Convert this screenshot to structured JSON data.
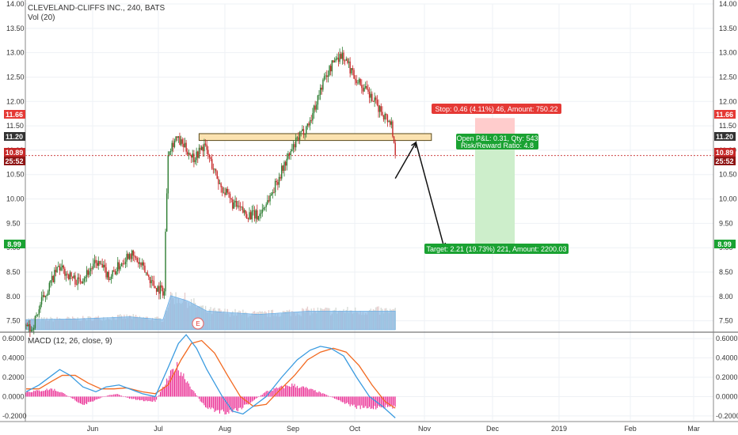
{
  "header": {
    "symbol_title": "CLEVELAND-CLIFFS INC., 240, BATS",
    "volume_label": "Vol (20)",
    "earnings_marker": "E"
  },
  "macd_pane": {
    "title": "MACD (12, 26, close, 9)"
  },
  "colors": {
    "up": "#2e7d32",
    "down": "#c62828",
    "macd_line": "#3a9be0",
    "signal_line": "#f26a21",
    "hist_pos": "#e91e8c",
    "hist_neg": "#e91e8c",
    "volume": "#7cb6e6",
    "zone": "#fbe2b0",
    "stop_fill": "#ffcccc",
    "target_fill": "#cdeecb",
    "stop_tag": "#e53935",
    "target_tag": "#1aa232"
  },
  "price_tags": {
    "stop": "11.66",
    "entry": "11.20",
    "last": "10.89",
    "countdown": "25:52",
    "target": "8.99"
  },
  "position": {
    "stop_label": "Stop: 0.46 (4.11%) 46, Amount: 750.22",
    "open_pnl_label": "Open P&L: 0.31, Qty: 543",
    "risk_reward_label": "Risk/Reward Ratio: 4.8",
    "target_label": "Target: 2.21 (19.73%) 221, Amount: 2200.03"
  },
  "chart_data": {
    "type": "candlestick",
    "title": "CLEVELAND-CLIFFS INC., 240, BATS",
    "y_axis_labels": [
      "14.00",
      "13.50",
      "13.00",
      "12.50",
      "12.00",
      "11.50",
      "11.00",
      "10.50",
      "10.00",
      "9.50",
      "9.00",
      "8.50",
      "8.00",
      "7.50"
    ],
    "ylim": [
      7.3,
      14.0
    ],
    "x_axis_labels": [
      "Jun",
      "Jul",
      "Aug",
      "Sep",
      "Oct",
      "Nov",
      "Dec",
      "2019",
      "Feb",
      "Mar"
    ],
    "price_path": [
      [
        0,
        7.4
      ],
      [
        4,
        7.3
      ],
      [
        12,
        7.9
      ],
      [
        25,
        8.6
      ],
      [
        40,
        8.3
      ],
      [
        55,
        8.7
      ],
      [
        65,
        8.4
      ],
      [
        80,
        8.9
      ],
      [
        90,
        8.6
      ],
      [
        100,
        8.2
      ],
      [
        107,
        8.1
      ],
      [
        108,
        9.3
      ],
      [
        110,
        11.0
      ],
      [
        116,
        11.25
      ],
      [
        130,
        10.85
      ],
      [
        138,
        11.1
      ],
      [
        150,
        10.3
      ],
      [
        160,
        9.9
      ],
      [
        170,
        9.7
      ],
      [
        180,
        9.65
      ],
      [
        190,
        10.1
      ],
      [
        200,
        10.7
      ],
      [
        210,
        11.2
      ],
      [
        220,
        11.6
      ],
      [
        230,
        12.4
      ],
      [
        240,
        12.9
      ],
      [
        245,
        12.95
      ],
      [
        255,
        12.5
      ],
      [
        265,
        12.15
      ],
      [
        275,
        11.8
      ],
      [
        283,
        11.55
      ],
      [
        286,
        10.9
      ]
    ],
    "volume_level_path": [
      [
        0,
        0.3
      ],
      [
        40,
        0.32
      ],
      [
        80,
        0.38
      ],
      [
        106,
        0.3
      ],
      [
        112,
        1.0
      ],
      [
        125,
        0.85
      ],
      [
        140,
        0.55
      ],
      [
        180,
        0.45
      ],
      [
        220,
        0.55
      ],
      [
        286,
        0.55
      ]
    ],
    "resistance_zone": [
      11.2,
      11.34
    ],
    "projection_path": [
      {
        "offset": 0,
        "value": 10.42
      },
      {
        "offset": 16,
        "value": 11.16
      },
      {
        "offset": 38,
        "value": 8.99
      }
    ],
    "risk_reward": {
      "entry": 11.2,
      "stop": 11.66,
      "target": 8.99
    },
    "macd": {
      "y_axis_labels": [
        "0.6000",
        "0.4000",
        "0.2000",
        "0.0000",
        "-0.2000"
      ],
      "ylim": [
        -0.25,
        0.65
      ],
      "macd_line": [
        [
          0,
          0.05
        ],
        [
          10,
          0.12
        ],
        [
          20,
          0.22
        ],
        [
          26,
          0.28
        ],
        [
          34,
          0.22
        ],
        [
          44,
          0.1
        ],
        [
          54,
          0.05
        ],
        [
          62,
          0.1
        ],
        [
          72,
          0.12
        ],
        [
          80,
          0.08
        ],
        [
          90,
          0.03
        ],
        [
          100,
          0.0
        ],
        [
          110,
          0.3
        ],
        [
          118,
          0.55
        ],
        [
          124,
          0.64
        ],
        [
          132,
          0.5
        ],
        [
          140,
          0.28
        ],
        [
          152,
          0.0
        ],
        [
          160,
          -0.15
        ],
        [
          168,
          -0.18
        ],
        [
          176,
          -0.1
        ],
        [
          186,
          0.0
        ],
        [
          198,
          0.2
        ],
        [
          210,
          0.38
        ],
        [
          220,
          0.48
        ],
        [
          228,
          0.52
        ],
        [
          236,
          0.5
        ],
        [
          246,
          0.42
        ],
        [
          256,
          0.2
        ],
        [
          266,
          0.0
        ],
        [
          276,
          -0.1
        ],
        [
          286,
          -0.22
        ]
      ],
      "signal_line": [
        [
          0,
          0.08
        ],
        [
          10,
          0.08
        ],
        [
          20,
          0.16
        ],
        [
          28,
          0.22
        ],
        [
          38,
          0.22
        ],
        [
          48,
          0.14
        ],
        [
          58,
          0.08
        ],
        [
          68,
          0.08
        ],
        [
          78,
          0.09
        ],
        [
          90,
          0.05
        ],
        [
          100,
          0.03
        ],
        [
          110,
          0.12
        ],
        [
          120,
          0.38
        ],
        [
          128,
          0.55
        ],
        [
          136,
          0.58
        ],
        [
          146,
          0.45
        ],
        [
          156,
          0.22
        ],
        [
          166,
          0.0
        ],
        [
          176,
          -0.1
        ],
        [
          186,
          -0.08
        ],
        [
          196,
          0.06
        ],
        [
          208,
          0.22
        ],
        [
          218,
          0.38
        ],
        [
          228,
          0.46
        ],
        [
          238,
          0.5
        ],
        [
          248,
          0.46
        ],
        [
          258,
          0.32
        ],
        [
          268,
          0.12
        ],
        [
          278,
          -0.05
        ],
        [
          286,
          -0.12
        ]
      ],
      "histogram": [
        [
          0,
          0.05
        ],
        [
          10,
          0.06
        ],
        [
          20,
          0.08
        ],
        [
          28,
          0.04
        ],
        [
          36,
          -0.02
        ],
        [
          44,
          -0.08
        ],
        [
          52,
          -0.05
        ],
        [
          60,
          0.0
        ],
        [
          70,
          0.03
        ],
        [
          80,
          -0.02
        ],
        [
          90,
          -0.04
        ],
        [
          100,
          -0.05
        ],
        [
          110,
          0.18
        ],
        [
          116,
          0.32
        ],
        [
          122,
          0.22
        ],
        [
          130,
          0.05
        ],
        [
          138,
          -0.1
        ],
        [
          146,
          -0.14
        ],
        [
          156,
          -0.16
        ],
        [
          166,
          -0.12
        ],
        [
          176,
          -0.04
        ],
        [
          186,
          0.05
        ],
        [
          196,
          0.09
        ],
        [
          206,
          0.12
        ],
        [
          216,
          0.09
        ],
        [
          226,
          0.05
        ],
        [
          236,
          0.0
        ],
        [
          246,
          -0.06
        ],
        [
          256,
          -0.11
        ],
        [
          266,
          -0.12
        ],
        [
          276,
          -0.1
        ],
        [
          286,
          -0.11
        ]
      ]
    }
  }
}
